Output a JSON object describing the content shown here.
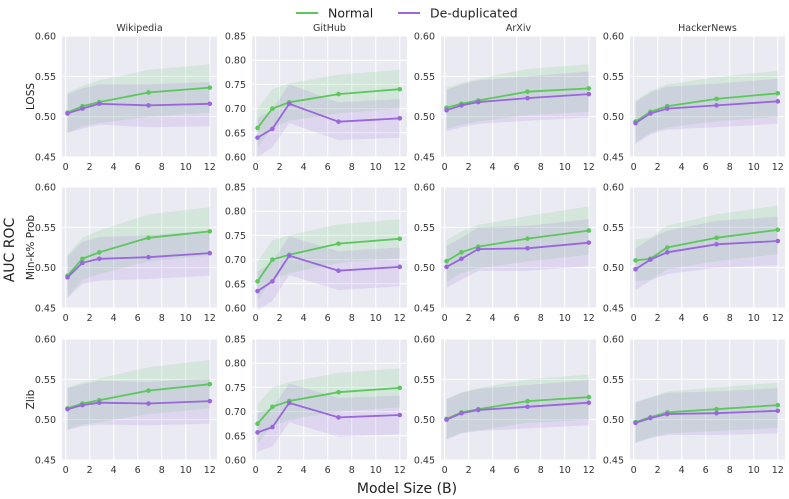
{
  "chart_data": {
    "type": "line",
    "title": "",
    "xlabel": "Model Size (B)",
    "ylabel": "AUC ROC",
    "x": [
      0.16,
      1.4,
      2.8,
      6.9,
      12
    ],
    "xticks": [
      0,
      2,
      4,
      6,
      8,
      10,
      12
    ],
    "xlim": [
      -0.3,
      12.6
    ],
    "legend": {
      "position": "top-center",
      "entries": [
        {
          "name": "Normal",
          "color": "#5ac85a"
        },
        {
          "name": "De-duplicated",
          "color": "#9966dd"
        }
      ]
    },
    "columns": [
      "Wikipedia",
      "GitHub",
      "ArXiv",
      "HackerNews"
    ],
    "rows": [
      "LOSS",
      "Min-k% Prob",
      "Zlib"
    ],
    "ylims": {
      "default": [
        0.45,
        0.6
      ],
      "default_ticks": [
        0.45,
        0.5,
        0.55,
        0.6
      ],
      "github": [
        0.6,
        0.85
      ],
      "github_ticks": [
        0.6,
        0.65,
        0.7,
        0.75,
        0.8,
        0.85
      ]
    },
    "panels": [
      {
        "row": "LOSS",
        "column": "Wikipedia",
        "series": [
          {
            "name": "Normal",
            "values": [
              0.505,
              0.513,
              0.518,
              0.53,
              0.536
            ],
            "lower": [
              0.48,
              0.488,
              0.492,
              0.5,
              0.505
            ],
            "upper": [
              0.53,
              0.538,
              0.545,
              0.558,
              0.565
            ]
          },
          {
            "name": "De-duplicated",
            "values": [
              0.504,
              0.51,
              0.516,
              0.514,
              0.516
            ],
            "lower": [
              0.48,
              0.485,
              0.49,
              0.487,
              0.488
            ],
            "upper": [
              0.528,
              0.535,
              0.54,
              0.54,
              0.543
            ]
          }
        ]
      },
      {
        "row": "LOSS",
        "column": "GitHub",
        "series": [
          {
            "name": "Normal",
            "values": [
              0.66,
              0.7,
              0.713,
              0.73,
              0.74
            ],
            "lower": [
              0.62,
              0.66,
              0.675,
              0.69,
              0.7
            ],
            "upper": [
              0.7,
              0.74,
              0.752,
              0.77,
              0.78
            ]
          },
          {
            "name": "De-duplicated",
            "values": [
              0.64,
              0.658,
              0.71,
              0.673,
              0.68
            ],
            "lower": [
              0.6,
              0.62,
              0.67,
              0.635,
              0.64
            ],
            "upper": [
              0.68,
              0.698,
              0.75,
              0.713,
              0.72
            ]
          }
        ]
      },
      {
        "row": "LOSS",
        "column": "ArXiv",
        "series": [
          {
            "name": "Normal",
            "values": [
              0.511,
              0.516,
              0.52,
              0.531,
              0.535
            ],
            "lower": [
              0.485,
              0.49,
              0.494,
              0.502,
              0.506
            ],
            "upper": [
              0.536,
              0.542,
              0.547,
              0.559,
              0.565
            ]
          },
          {
            "name": "De-duplicated",
            "values": [
              0.508,
              0.514,
              0.518,
              0.523,
              0.528
            ],
            "lower": [
              0.482,
              0.487,
              0.491,
              0.495,
              0.499
            ],
            "upper": [
              0.533,
              0.54,
              0.545,
              0.55,
              0.556
            ]
          }
        ]
      },
      {
        "row": "LOSS",
        "column": "HackerNews",
        "series": [
          {
            "name": "Normal",
            "values": [
              0.494,
              0.506,
              0.513,
              0.522,
              0.529
            ],
            "lower": [
              0.468,
              0.48,
              0.487,
              0.494,
              0.5
            ],
            "upper": [
              0.52,
              0.532,
              0.54,
              0.549,
              0.557
            ]
          },
          {
            "name": "De-duplicated",
            "values": [
              0.492,
              0.504,
              0.51,
              0.514,
              0.519
            ],
            "lower": [
              0.466,
              0.478,
              0.484,
              0.487,
              0.491
            ],
            "upper": [
              0.518,
              0.53,
              0.537,
              0.541,
              0.547
            ]
          }
        ]
      },
      {
        "row": "Min-k% Prob",
        "column": "Wikipedia",
        "series": [
          {
            "name": "Normal",
            "values": [
              0.49,
              0.511,
              0.519,
              0.537,
              0.545
            ],
            "lower": [
              0.464,
              0.485,
              0.492,
              0.508,
              0.515
            ],
            "upper": [
              0.516,
              0.537,
              0.546,
              0.566,
              0.575
            ]
          },
          {
            "name": "De-duplicated",
            "values": [
              0.488,
              0.506,
              0.511,
              0.513,
              0.518
            ],
            "lower": [
              0.462,
              0.48,
              0.484,
              0.486,
              0.49
            ],
            "upper": [
              0.514,
              0.532,
              0.538,
              0.54,
              0.546
            ]
          }
        ]
      },
      {
        "row": "Min-k% Prob",
        "column": "GitHub",
        "series": [
          {
            "name": "Normal",
            "values": [
              0.655,
              0.7,
              0.71,
              0.733,
              0.743
            ],
            "lower": [
              0.615,
              0.66,
              0.672,
              0.693,
              0.703
            ],
            "upper": [
              0.695,
              0.74,
              0.75,
              0.773,
              0.783
            ]
          },
          {
            "name": "De-duplicated",
            "values": [
              0.635,
              0.655,
              0.708,
              0.677,
              0.685
            ],
            "lower": [
              0.595,
              0.615,
              0.668,
              0.637,
              0.645
            ],
            "upper": [
              0.675,
              0.695,
              0.748,
              0.717,
              0.725
            ]
          }
        ]
      },
      {
        "row": "Min-k% Prob",
        "column": "ArXiv",
        "series": [
          {
            "name": "Normal",
            "values": [
              0.508,
              0.519,
              0.526,
              0.536,
              0.546
            ],
            "lower": [
              0.482,
              0.493,
              0.499,
              0.508,
              0.516
            ],
            "upper": [
              0.534,
              0.545,
              0.553,
              0.564,
              0.576
            ]
          },
          {
            "name": "De-duplicated",
            "values": [
              0.501,
              0.511,
              0.523,
              0.524,
              0.531
            ],
            "lower": [
              0.475,
              0.485,
              0.496,
              0.496,
              0.502
            ],
            "upper": [
              0.527,
              0.537,
              0.55,
              0.552,
              0.56
            ]
          }
        ]
      },
      {
        "row": "Min-k% Prob",
        "column": "HackerNews",
        "series": [
          {
            "name": "Normal",
            "values": [
              0.509,
              0.511,
              0.525,
              0.537,
              0.547
            ],
            "lower": [
              0.483,
              0.485,
              0.498,
              0.508,
              0.517
            ],
            "upper": [
              0.535,
              0.537,
              0.552,
              0.566,
              0.577
            ]
          },
          {
            "name": "De-duplicated",
            "values": [
              0.498,
              0.51,
              0.519,
              0.529,
              0.533
            ],
            "lower": [
              0.472,
              0.484,
              0.492,
              0.5,
              0.503
            ],
            "upper": [
              0.524,
              0.536,
              0.546,
              0.558,
              0.563
            ]
          }
        ]
      },
      {
        "row": "Zlib",
        "column": "Wikipedia",
        "series": [
          {
            "name": "Normal",
            "values": [
              0.514,
              0.52,
              0.524,
              0.536,
              0.544
            ],
            "lower": [
              0.488,
              0.494,
              0.497,
              0.507,
              0.514
            ],
            "upper": [
              0.54,
              0.546,
              0.551,
              0.565,
              0.574
            ]
          },
          {
            "name": "De-duplicated",
            "values": [
              0.513,
              0.518,
              0.521,
              0.52,
              0.523
            ],
            "lower": [
              0.487,
              0.492,
              0.494,
              0.493,
              0.495
            ],
            "upper": [
              0.539,
              0.544,
              0.548,
              0.547,
              0.551
            ]
          }
        ]
      },
      {
        "row": "Zlib",
        "column": "GitHub",
        "series": [
          {
            "name": "Normal",
            "values": [
              0.675,
              0.71,
              0.722,
              0.74,
              0.749
            ],
            "lower": [
              0.635,
              0.67,
              0.683,
              0.7,
              0.709
            ],
            "upper": [
              0.715,
              0.75,
              0.761,
              0.78,
              0.789
            ]
          },
          {
            "name": "De-duplicated",
            "values": [
              0.657,
              0.668,
              0.718,
              0.688,
              0.693
            ],
            "lower": [
              0.617,
              0.628,
              0.678,
              0.648,
              0.653
            ],
            "upper": [
              0.697,
              0.708,
              0.758,
              0.728,
              0.733
            ]
          }
        ]
      },
      {
        "row": "Zlib",
        "column": "ArXiv",
        "series": [
          {
            "name": "Normal",
            "values": [
              0.501,
              0.509,
              0.513,
              0.523,
              0.528
            ],
            "lower": [
              0.476,
              0.484,
              0.487,
              0.496,
              0.5
            ],
            "upper": [
              0.526,
              0.534,
              0.539,
              0.55,
              0.556
            ]
          },
          {
            "name": "De-duplicated",
            "values": [
              0.5,
              0.508,
              0.512,
              0.516,
              0.521
            ],
            "lower": [
              0.475,
              0.483,
              0.486,
              0.489,
              0.493
            ],
            "upper": [
              0.525,
              0.533,
              0.538,
              0.543,
              0.549
            ]
          }
        ]
      },
      {
        "row": "Zlib",
        "column": "HackerNews",
        "series": [
          {
            "name": "Normal",
            "values": [
              0.497,
              0.503,
              0.509,
              0.513,
              0.518
            ],
            "lower": [
              0.472,
              0.478,
              0.483,
              0.486,
              0.49
            ],
            "upper": [
              0.522,
              0.528,
              0.535,
              0.54,
              0.546
            ]
          },
          {
            "name": "De-duplicated",
            "values": [
              0.496,
              0.502,
              0.507,
              0.508,
              0.511
            ],
            "lower": [
              0.471,
              0.477,
              0.481,
              0.481,
              0.483
            ],
            "upper": [
              0.521,
              0.527,
              0.533,
              0.535,
              0.539
            ]
          }
        ]
      }
    ]
  }
}
